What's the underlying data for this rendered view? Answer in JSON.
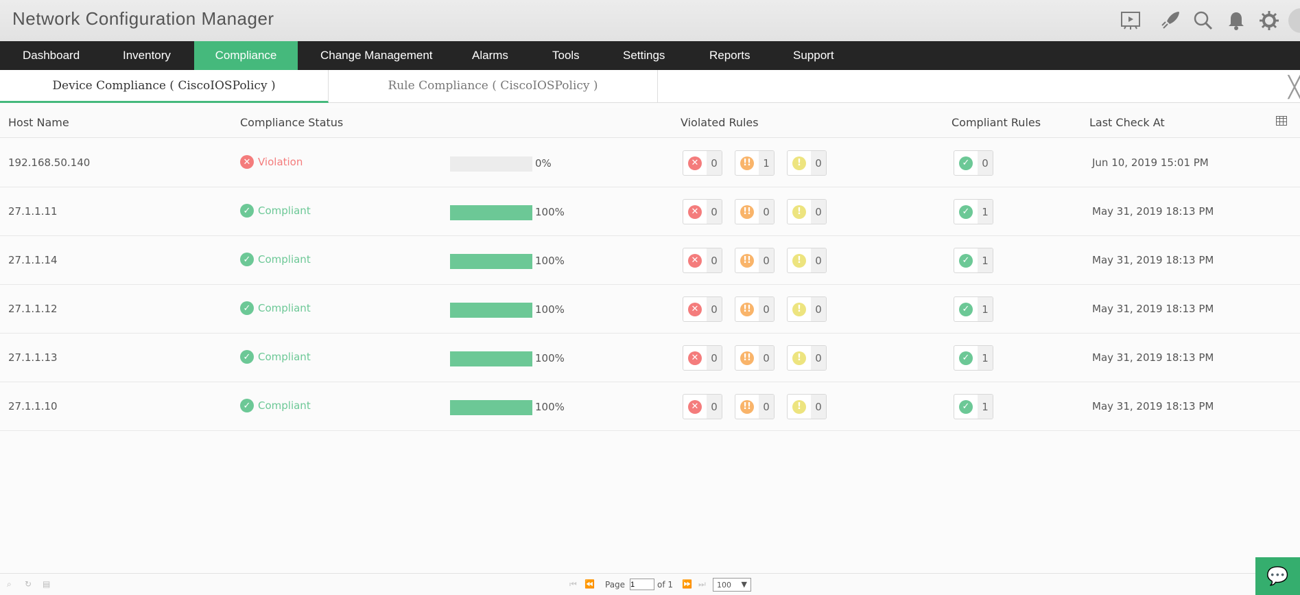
{
  "app": {
    "title": "Network Configuration Manager"
  },
  "header_icons": [
    "presentation-icon",
    "rocket-icon",
    "search-icon",
    "bell-icon",
    "gear-icon",
    "avatar"
  ],
  "nav": [
    {
      "label": "Dashboard"
    },
    {
      "label": "Inventory"
    },
    {
      "label": "Compliance",
      "active": true
    },
    {
      "label": "Change Management"
    },
    {
      "label": "Alarms"
    },
    {
      "label": "Tools"
    },
    {
      "label": "Settings"
    },
    {
      "label": "Reports"
    },
    {
      "label": "Support"
    }
  ],
  "tabs": [
    {
      "label": "Device Compliance ( CiscoIOSPolicy )",
      "active": true
    },
    {
      "label": "Rule Compliance ( CiscoIOSPolicy )"
    }
  ],
  "table": {
    "headers": {
      "host": "Host Name",
      "status": "Compliance Status",
      "violated": "Violated Rules",
      "compliant": "Compliant Rules",
      "last": "Last Check At"
    },
    "rows": [
      {
        "host": "192.168.50.140",
        "status": "Violation",
        "progress": "0%",
        "high": "0",
        "medium": "1",
        "low": "0",
        "compliant": "0",
        "last": "Jun 10, 2019 15:01 PM"
      },
      {
        "host": "27.1.1.11",
        "status": "Compliant",
        "progress": "100%",
        "high": "0",
        "medium": "0",
        "low": "0",
        "compliant": "1",
        "last": "May 31, 2019 18:13 PM"
      },
      {
        "host": "27.1.1.14",
        "status": "Compliant",
        "progress": "100%",
        "high": "0",
        "medium": "0",
        "low": "0",
        "compliant": "1",
        "last": "May 31, 2019 18:13 PM"
      },
      {
        "host": "27.1.1.12",
        "status": "Compliant",
        "progress": "100%",
        "high": "0",
        "medium": "0",
        "low": "0",
        "compliant": "1",
        "last": "May 31, 2019 18:13 PM"
      },
      {
        "host": "27.1.1.13",
        "status": "Compliant",
        "progress": "100%",
        "high": "0",
        "medium": "0",
        "low": "0",
        "compliant": "1",
        "last": "May 31, 2019 18:13 PM"
      },
      {
        "host": "27.1.1.10",
        "status": "Compliant",
        "progress": "100%",
        "high": "0",
        "medium": "0",
        "low": "0",
        "compliant": "1",
        "last": "May 31, 2019 18:13 PM"
      }
    ]
  },
  "pager": {
    "page_label": "Page",
    "page_value": "1",
    "of_label": "of 1",
    "page_size": "100"
  },
  "colors": {
    "accent": "#45b97c",
    "violation": "#f47c7c",
    "compliant": "#6cc896",
    "medium": "#f9b46a",
    "low": "#ede47f",
    "nav_bg": "#252525"
  }
}
